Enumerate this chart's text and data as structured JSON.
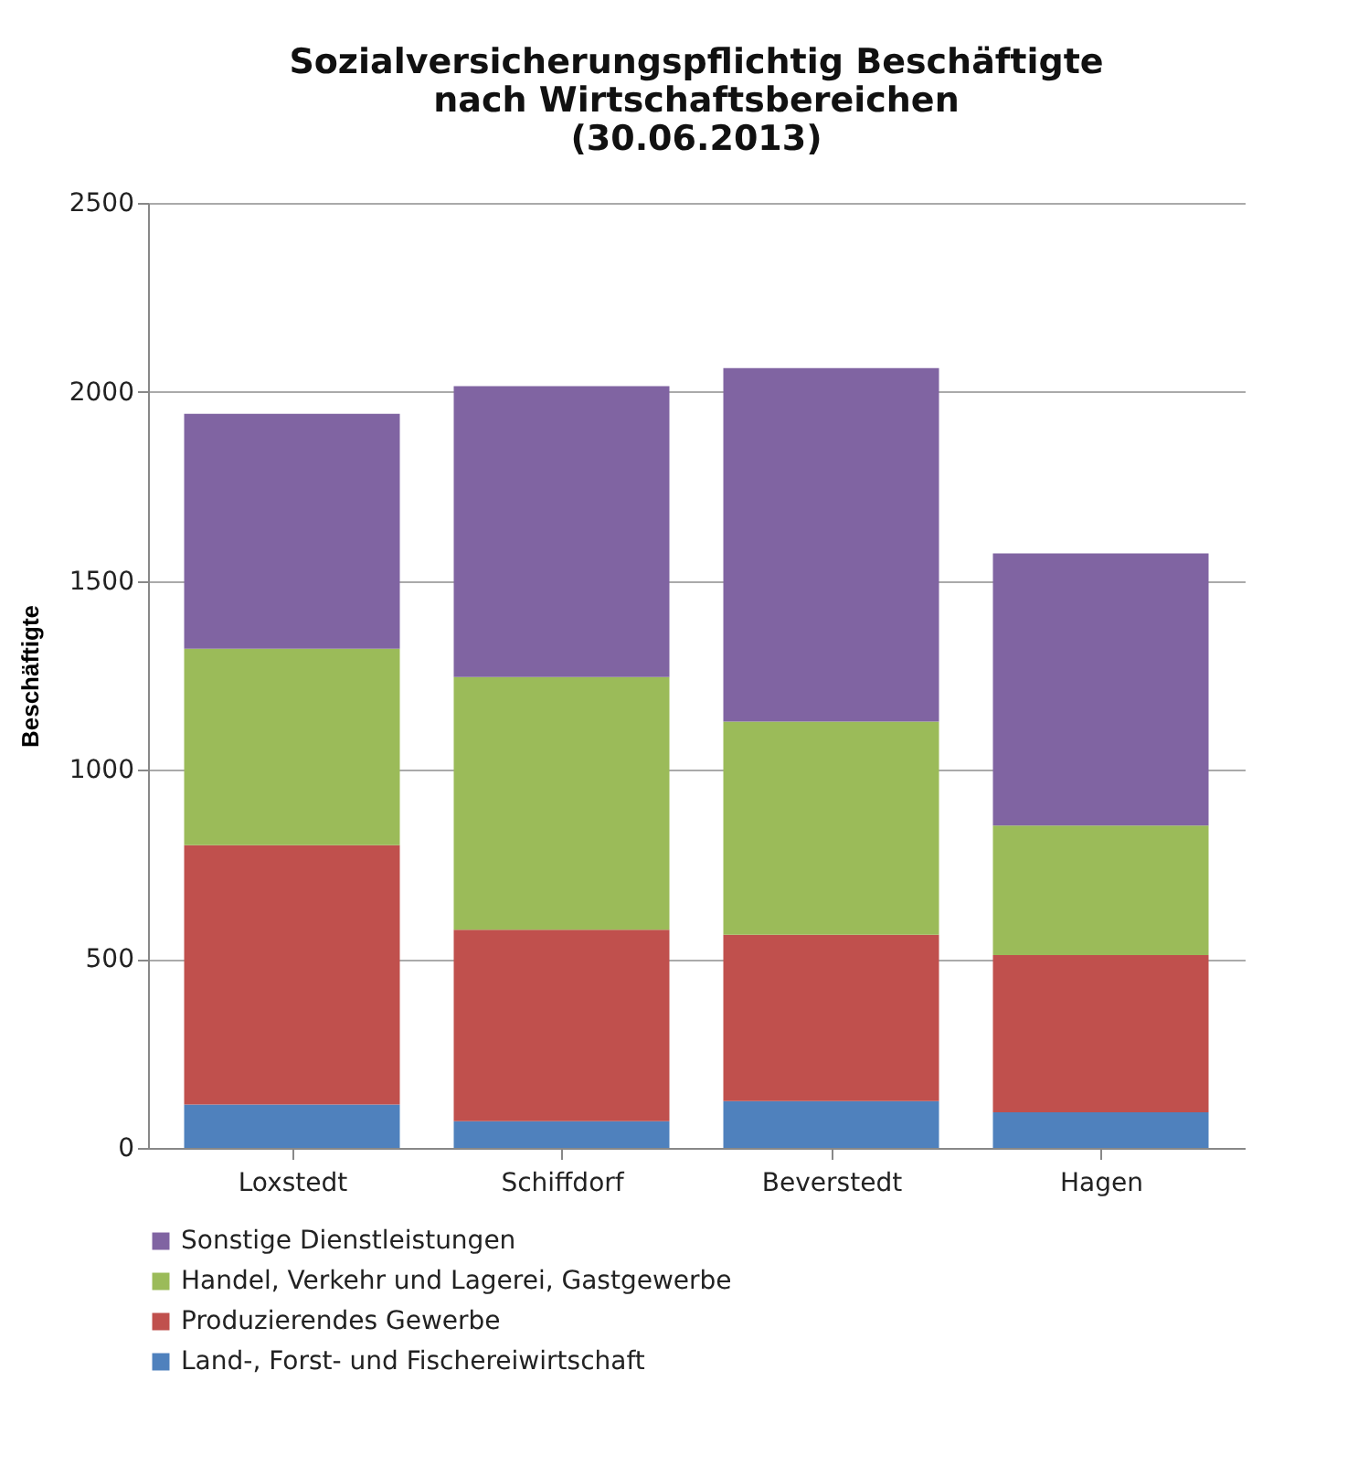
{
  "chart_data": {
    "type": "bar",
    "title": "Sozialversicherungspflichtig Beschäftigte\nnach Wirtschaftsbereichen\n(30.06.2013)",
    "ylabel": "Beschäftigte",
    "categories": [
      "Loxstedt",
      "Schiffdorf",
      "Beverstedt",
      "Hagen"
    ],
    "stacked": true,
    "series": [
      {
        "name": "Land-, Forst- und Fischereiwirtschaft",
        "color": "#4f81bd",
        "values": [
          115,
          71,
          124,
          94
        ]
      },
      {
        "name": "Produzierendes Gewerbe",
        "color": "#c0504d",
        "values": [
          686,
          506,
          440,
          416
        ]
      },
      {
        "name": "Handel, Verkehr und Lagerei, Gastgewerbe",
        "color": "#9bbb59",
        "values": [
          520,
          669,
          564,
          343
        ]
      },
      {
        "name": "Sonstige Dienstleistungen",
        "color": "#8064a2",
        "values": [
          621,
          769,
          935,
          720
        ]
      }
    ],
    "ylim": [
      0,
      2500
    ],
    "yticks": [
      0,
      500,
      1000,
      1500,
      2000,
      2500
    ],
    "grid": "y",
    "legend": "bottom"
  }
}
